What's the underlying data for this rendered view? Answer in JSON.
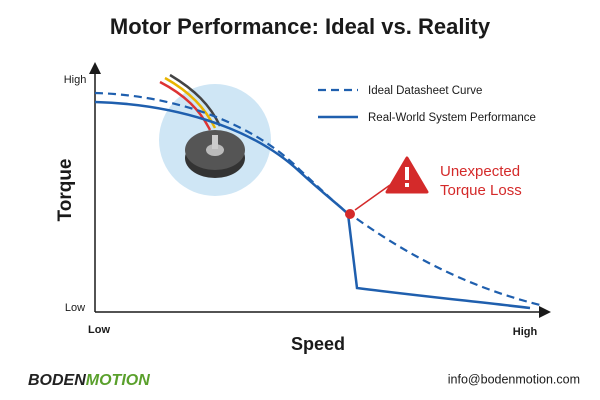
{
  "header": {
    "title": "Motor Performance: Ideal vs. Reality"
  },
  "axes": {
    "y_label": "Torque",
    "x_label": "Speed",
    "y_high": "High",
    "y_low": "Low",
    "x_low": "Low",
    "x_high": "High"
  },
  "legend": {
    "ideal": "Ideal Datasheet Curve",
    "real": "Real-World System Performance"
  },
  "annotation": {
    "line1": "Unexpected",
    "line2": "Torque Loss"
  },
  "footer": {
    "brand_left": "BODEN",
    "brand_right": "MOTION",
    "email": "info@bodenmotion.com"
  }
}
